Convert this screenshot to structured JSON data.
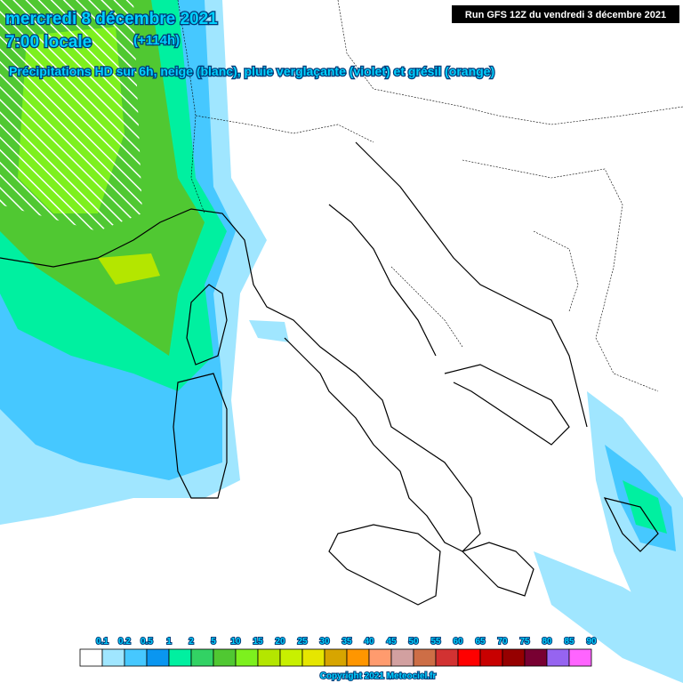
{
  "header": {
    "date": "mercredi 8 décembre 2021",
    "time": "7:00 locale",
    "lead": "(+114h)",
    "product": "Précipitations HD sur 6h, neige (blanc), pluie verglaçante (violet) et grésil (orange)",
    "run": "Run GFS 12Z du vendredi 3 décembre 2021"
  },
  "legend": {
    "labels": [
      "0.1",
      "0.2",
      "0.5",
      "1",
      "2",
      "5",
      "10",
      "15",
      "20",
      "25",
      "30",
      "35",
      "40",
      "45",
      "50",
      "55",
      "60",
      "65",
      "70",
      "75",
      "80",
      "85",
      "90"
    ],
    "colors": [
      "#ffffff",
      "#a0e6ff",
      "#46c8ff",
      "#0a96f0",
      "#00f0a0",
      "#32d264",
      "#50c832",
      "#7df01e",
      "#b4e600",
      "#c8f000",
      "#e6e600",
      "#d7a500",
      "#ff9600",
      "#ff9b6e",
      "#d2a0a0",
      "#cd6e46",
      "#d23232",
      "#ff0000",
      "#c80000",
      "#960000",
      "#780032",
      "#9664f0",
      "#ff64ff"
    ]
  },
  "footer": {
    "copyright": "Copyright 2021 Meteociel.fr"
  }
}
